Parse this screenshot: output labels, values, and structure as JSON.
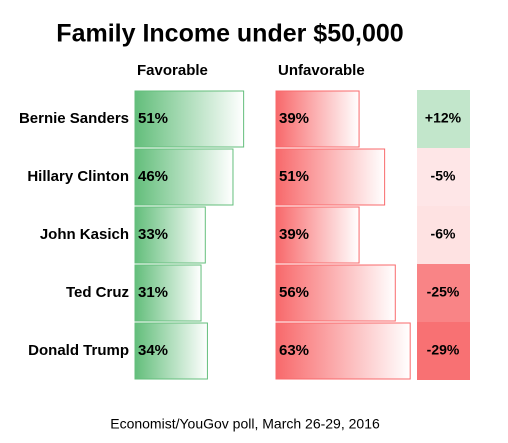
{
  "chart_data": {
    "type": "bar",
    "title": "Family Income under $50,000",
    "categories": [
      "Bernie Sanders",
      "Hillary Clinton",
      "John Kasich",
      "Ted Cruz",
      "Donald Trump"
    ],
    "series": [
      {
        "name": "Favorable",
        "color": "#63be7b",
        "values": [
          51,
          46,
          33,
          31,
          34
        ],
        "value_labels": [
          "51%",
          "46%",
          "33%",
          "31%",
          "34%"
        ]
      },
      {
        "name": "Unfavorable",
        "color": "#f8696b",
        "values": [
          39,
          51,
          39,
          56,
          63
        ],
        "value_labels": [
          "39%",
          "51%",
          "39%",
          "56%",
          "63%"
        ]
      }
    ],
    "net": {
      "positive_color": "#63be7b",
      "negative_color": "#f8696b",
      "values": [
        12,
        -5,
        -6,
        -25,
        -29
      ],
      "value_labels": [
        "+12%",
        "-5%",
        "-6%",
        "-25%",
        "-29%"
      ]
    },
    "source": "Economist/YouGov poll, March 26-29, 2016"
  }
}
